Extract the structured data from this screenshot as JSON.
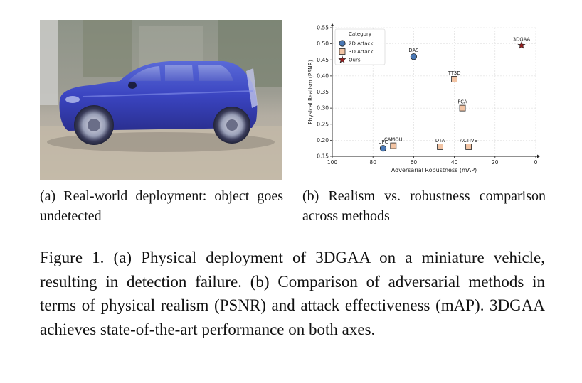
{
  "panel_a": {
    "caption": "(a) Real-world deployment: object goes undetected"
  },
  "panel_b": {
    "caption": "(b) Realism vs. robustness comparison across methods"
  },
  "figure_caption": "Figure 1. (a) Physical deployment of 3DGAA on a miniature vehicle, resulting in detection failure. (b) Comparison of adversarial methods in terms of physical realism (PSNR) and attack effectiveness (mAP). 3DGAA achieves state-of-the-art performance on both axes.",
  "chart_data": {
    "type": "scatter",
    "xlabel": "Adversarial Robustness (mAP)",
    "ylabel": "Physical Realism (PSNR)",
    "xlim": [
      100,
      0
    ],
    "ylim": [
      0.15,
      0.55
    ],
    "x_inverted": true,
    "grid": true,
    "xticks": [
      "100",
      "80",
      "60",
      "40",
      "20",
      "0"
    ],
    "yticks": [
      "0.15",
      "0.20",
      "0.25",
      "0.30",
      "0.35",
      "0.40",
      "0.45",
      "0.50",
      "0.55"
    ],
    "legend": {
      "title": "Category",
      "placement": "top-left",
      "entries": [
        "2D Attack",
        "3D Attack",
        "Ours"
      ]
    },
    "series": [
      {
        "name": "2D Attack",
        "marker": "circle",
        "color": "#4a78b4",
        "points": [
          {
            "label": "DAS",
            "x": 60,
            "y": 0.46
          },
          {
            "label": "UPC",
            "x": 75,
            "y": 0.175
          }
        ]
      },
      {
        "name": "3D Attack",
        "marker": "square",
        "color": "#f2c4a4",
        "points": [
          {
            "label": "TT3D",
            "x": 40,
            "y": 0.39
          },
          {
            "label": "FCA",
            "x": 36,
            "y": 0.3
          },
          {
            "label": "CAMOU",
            "x": 70,
            "y": 0.183
          },
          {
            "label": "DTA",
            "x": 47,
            "y": 0.18
          },
          {
            "label": "ACTIVE",
            "x": 33,
            "y": 0.18
          }
        ]
      },
      {
        "name": "Ours",
        "marker": "star",
        "color": "#9b2020",
        "points": [
          {
            "label": "3DGAA",
            "x": 7,
            "y": 0.495
          }
        ]
      }
    ]
  }
}
